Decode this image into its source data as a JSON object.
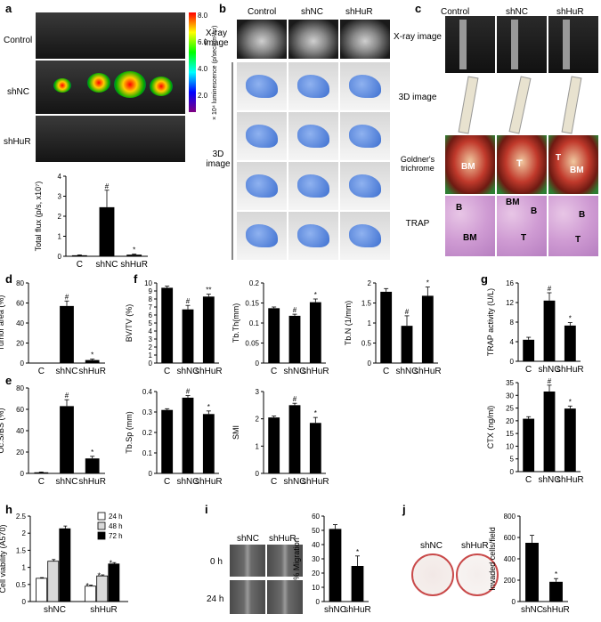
{
  "panel_letters": [
    "a",
    "b",
    "c",
    "d",
    "e",
    "f",
    "g",
    "h",
    "i",
    "j"
  ],
  "panel_a": {
    "row_labels": [
      "Control",
      "shNC",
      "shHuR"
    ],
    "colorbar_ticks": [
      "8.0",
      "6.0",
      "4.0",
      "2.0"
    ],
    "colorbar_label": "× 10⁴ luminescence (p/sec/cm²/sr)"
  },
  "panel_b": {
    "col_labels": [
      "Control",
      "shNC",
      "shHuR"
    ],
    "row_labels": [
      "X-ray image",
      "3D image"
    ]
  },
  "panel_c": {
    "col_labels": [
      "Control",
      "shNC",
      "shHuR"
    ],
    "row_labels": [
      "X-ray image",
      "3D image",
      "Goldner's trichrome",
      "TRAP"
    ],
    "goldner_marks": [
      "BM",
      "T",
      "T",
      "BM"
    ],
    "trap_marks": [
      "B",
      "BM",
      "BM",
      "B",
      "T",
      "B",
      "T"
    ]
  },
  "panel_i": {
    "row_labels": [
      "0 h",
      "24 h"
    ],
    "col_labels": [
      "shNC",
      "shHuR"
    ]
  },
  "panel_j": {
    "col_labels": [
      "shNC",
      "shHuR"
    ]
  },
  "chart_data": [
    {
      "id": "a",
      "type": "bar",
      "categories": [
        "C",
        "shNC",
        "shHuR"
      ],
      "values": [
        0.05,
        2.45,
        0.08
      ],
      "errors": [
        0.02,
        0.85,
        0.03
      ],
      "marks": [
        "",
        "#",
        "*"
      ],
      "ylabel": "Total flux (p/s, x10⁷)",
      "ylim": [
        0,
        4
      ],
      "yticks": [
        0,
        1,
        2,
        3,
        4
      ]
    },
    {
      "id": "d",
      "type": "bar",
      "categories": [
        "C",
        "shNC",
        "shHuR"
      ],
      "values": [
        0,
        57,
        3
      ],
      "errors": [
        0,
        5,
        1
      ],
      "marks": [
        "",
        "#",
        "*"
      ],
      "ylabel": "Tumor area (%)",
      "ylim": [
        0,
        80
      ],
      "yticks": [
        0,
        20,
        40,
        60,
        80
      ]
    },
    {
      "id": "e",
      "type": "bar",
      "categories": [
        "C",
        "shNC",
        "shHuR"
      ],
      "values": [
        1,
        63,
        14
      ],
      "errors": [
        0.3,
        6,
        2
      ],
      "marks": [
        "",
        "#",
        "*"
      ],
      "ylabel": "Oc.S/BS (%)",
      "ylim": [
        0,
        80
      ],
      "yticks": [
        0,
        20,
        40,
        60,
        80
      ]
    },
    {
      "id": "f1",
      "type": "bar",
      "categories": [
        "C",
        "shNC",
        "shHuR"
      ],
      "values": [
        9.4,
        6.7,
        8.3
      ],
      "errors": [
        0.2,
        0.5,
        0.3
      ],
      "marks": [
        "",
        "#",
        "**"
      ],
      "ylabel": "BV/TV (%)",
      "ylim": [
        0,
        10
      ],
      "yticks": [
        0,
        1,
        2,
        3,
        4,
        5,
        6,
        7,
        8,
        9,
        10
      ]
    },
    {
      "id": "f2",
      "type": "bar",
      "categories": [
        "C",
        "shNC",
        "shHuR"
      ],
      "values": [
        0.137,
        0.118,
        0.152
      ],
      "errors": [
        0.003,
        0.004,
        0.008
      ],
      "marks": [
        "",
        "#",
        "*"
      ],
      "ylabel": "Tb.Th(mm)",
      "ylim": [
        0,
        0.2
      ],
      "yticks": [
        0,
        0.05,
        0.1,
        0.15,
        0.2
      ]
    },
    {
      "id": "f3",
      "type": "bar",
      "categories": [
        "C",
        "shNC",
        "shHuR"
      ],
      "values": [
        1.78,
        0.93,
        1.68
      ],
      "errors": [
        0.08,
        0.25,
        0.22
      ],
      "marks": [
        "",
        "#",
        "*"
      ],
      "ylabel": "Tb.N (1/mm)",
      "ylim": [
        0,
        2
      ],
      "yticks": [
        0,
        0.5,
        1,
        1.5,
        2
      ]
    },
    {
      "id": "f4",
      "type": "bar",
      "categories": [
        "C",
        "shNC",
        "shHuR"
      ],
      "values": [
        0.31,
        0.37,
        0.29
      ],
      "errors": [
        0.006,
        0.01,
        0.015
      ],
      "marks": [
        "",
        "#",
        "*"
      ],
      "ylabel": "Tb.Sp (mm)",
      "ylim": [
        0,
        0.4
      ],
      "yticks": [
        0,
        0.1,
        0.2,
        0.3,
        0.4
      ]
    },
    {
      "id": "f5",
      "type": "bar",
      "categories": [
        "C",
        "shNC",
        "shHuR"
      ],
      "values": [
        2.05,
        2.5,
        1.85
      ],
      "errors": [
        0.05,
        0.07,
        0.2
      ],
      "marks": [
        "",
        "#",
        "*"
      ],
      "ylabel": "SMI",
      "ylim": [
        0,
        3
      ],
      "yticks": [
        0,
        1,
        2,
        3
      ]
    },
    {
      "id": "g1",
      "type": "bar",
      "categories": [
        "C",
        "shNC",
        "shHuR"
      ],
      "values": [
        4.4,
        12.4,
        7.3
      ],
      "errors": [
        0.5,
        1.6,
        0.6
      ],
      "marks": [
        "",
        "#",
        "*"
      ],
      "ylabel": "TRAP activity (U/L)",
      "ylim": [
        0,
        16
      ],
      "yticks": [
        0,
        4,
        8,
        12,
        16
      ]
    },
    {
      "id": "g2",
      "type": "bar",
      "categories": [
        "C",
        "shNC",
        "shHuR"
      ],
      "values": [
        20.8,
        31.5,
        24.8
      ],
      "errors": [
        0.8,
        2.5,
        1.0
      ],
      "marks": [
        "",
        "#",
        "*"
      ],
      "ylabel": "CTX (ng/ml)",
      "ylim": [
        0,
        35
      ],
      "yticks": [
        0,
        5,
        10,
        15,
        20,
        25,
        30,
        35
      ]
    },
    {
      "id": "h",
      "type": "bar",
      "categories": [
        "shNC",
        "shHuR"
      ],
      "series": [
        {
          "name": "24 h",
          "values": [
            0.68,
            0.45
          ],
          "errors": [
            0.02,
            0.03
          ]
        },
        {
          "name": "48 h",
          "values": [
            1.18,
            0.75
          ],
          "errors": [
            0.05,
            0.03
          ]
        },
        {
          "name": "72 h",
          "values": [
            2.13,
            1.1
          ],
          "errors": [
            0.08,
            0.04
          ]
        }
      ],
      "marks": [
        "",
        "",
        "",
        "*",
        "*",
        "*"
      ],
      "ylabel": "Cell viability (A570)",
      "ylim": [
        0,
        2.5
      ],
      "yticks": [
        0,
        0.5,
        1,
        1.5,
        2,
        2.5
      ]
    },
    {
      "id": "i",
      "type": "bar",
      "categories": [
        "shNC",
        "shHuR"
      ],
      "values": [
        51,
        25
      ],
      "errors": [
        3,
        7
      ],
      "marks": [
        "",
        "*"
      ],
      "ylabel": "% Migration",
      "ylim": [
        0,
        60
      ],
      "yticks": [
        0,
        10,
        20,
        30,
        40,
        50,
        60
      ]
    },
    {
      "id": "j",
      "type": "bar",
      "categories": [
        "shNC",
        "shHuR"
      ],
      "values": [
        550,
        185
      ],
      "errors": [
        70,
        30
      ],
      "marks": [
        "",
        "*"
      ],
      "ylabel": "Invaded cells/field",
      "ylim": [
        0,
        800
      ],
      "yticks": [
        0,
        200,
        400,
        600,
        800
      ]
    }
  ],
  "colors": {
    "bar": "#000000",
    "bar_24h": "#ffffff",
    "bar_48h": "#d9d9d9",
    "bar_72h": "#000000"
  }
}
